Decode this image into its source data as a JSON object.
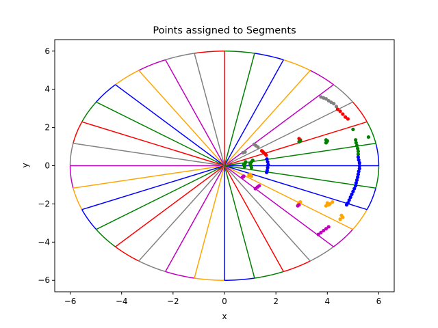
{
  "chart_data": {
    "type": "scatter",
    "title": "Points assigned to Segments",
    "xlabel": "x",
    "ylabel": "y",
    "xlim": [
      -6.6,
      6.6
    ],
    "ylim": [
      -6.6,
      6.6
    ],
    "xticks": [
      -6,
      -4,
      -2,
      0,
      2,
      4,
      6
    ],
    "yticks": [
      -6,
      -4,
      -2,
      0,
      2,
      4,
      6
    ],
    "xtick_labels": [
      "−6",
      "−4",
      "−2",
      "0",
      "2",
      "4",
      "6"
    ],
    "ytick_labels": [
      "−6",
      "−4",
      "−2",
      "0",
      "2",
      "4",
      "6"
    ],
    "grid": false,
    "ellipse": {
      "rx": 6,
      "ry": 6,
      "segments": 32
    },
    "segment_colors": [
      "blue",
      "green",
      "red",
      "gray",
      "magenta",
      "orange",
      "blue",
      "green",
      "red",
      "gray",
      "magenta",
      "orange",
      "blue",
      "green",
      "red",
      "gray",
      "magenta",
      "orange",
      "blue",
      "green",
      "red",
      "gray",
      "magenta",
      "orange",
      "blue",
      "green",
      "red",
      "gray",
      "magenta",
      "orange",
      "blue",
      "green"
    ],
    "colors": {
      "blue": "#0000ff",
      "green": "#008000",
      "red": "#ff0000",
      "gray": "#808080",
      "magenta": "#bf00bf",
      "orange": "#ffa500"
    },
    "clusters": [
      {
        "color": "gray",
        "points": [
          [
            3.75,
            3.6
          ],
          [
            3.85,
            3.55
          ],
          [
            3.95,
            3.5
          ],
          [
            4.05,
            3.4
          ],
          [
            4.15,
            3.32
          ],
          [
            4.25,
            3.25
          ],
          [
            4.35,
            3.1
          ],
          [
            1.15,
            1.12
          ],
          [
            1.22,
            1.05
          ],
          [
            1.3,
            0.98
          ],
          [
            0.8,
            0.72
          ],
          [
            0.72,
            0.68
          ]
        ]
      },
      {
        "color": "red",
        "points": [
          [
            4.4,
            2.95
          ],
          [
            4.5,
            2.85
          ],
          [
            4.6,
            2.7
          ],
          [
            4.7,
            2.55
          ],
          [
            4.8,
            2.45
          ],
          [
            2.9,
            1.42
          ],
          [
            2.95,
            1.35
          ],
          [
            2.92,
            1.3
          ],
          [
            1.45,
            0.78
          ],
          [
            1.5,
            0.72
          ],
          [
            1.55,
            0.65
          ],
          [
            1.6,
            0.6
          ],
          [
            1.62,
            0.55
          ]
        ]
      },
      {
        "color": "green",
        "points": [
          [
            5.0,
            1.9
          ],
          [
            5.6,
            1.5
          ],
          [
            5.1,
            1.35
          ],
          [
            5.12,
            1.2
          ],
          [
            5.15,
            1.05
          ],
          [
            5.18,
            0.9
          ],
          [
            5.2,
            0.75
          ],
          [
            5.2,
            0.6
          ],
          [
            3.95,
            1.35
          ],
          [
            4.0,
            1.3
          ],
          [
            3.98,
            1.25
          ],
          [
            3.95,
            1.2
          ],
          [
            2.9,
            1.25
          ],
          [
            2.95,
            1.3
          ],
          [
            0.75,
            0.05
          ],
          [
            0.78,
            -0.05
          ],
          [
            0.8,
            0.12
          ],
          [
            0.82,
            0.2
          ],
          [
            1.0,
            0.1
          ],
          [
            1.05,
            0.2
          ],
          [
            1.1,
            0.28
          ],
          [
            1.05,
            -0.1
          ],
          [
            1.02,
            0.02
          ]
        ]
      },
      {
        "color": "blue",
        "points": [
          [
            5.2,
            0.45
          ],
          [
            5.22,
            0.3
          ],
          [
            5.25,
            0.15
          ],
          [
            5.25,
            0.0
          ],
          [
            5.25,
            -0.15
          ],
          [
            5.22,
            -0.3
          ],
          [
            5.2,
            -0.45
          ],
          [
            5.18,
            -0.6
          ],
          [
            5.15,
            -0.75
          ],
          [
            5.12,
            -0.9
          ],
          [
            5.1,
            -1.05
          ],
          [
            5.05,
            -1.2
          ],
          [
            5.0,
            -1.35
          ],
          [
            4.95,
            -1.5
          ],
          [
            4.9,
            -1.65
          ],
          [
            4.85,
            -1.8
          ],
          [
            4.8,
            -1.95
          ],
          [
            4.75,
            -2.05
          ],
          [
            1.65,
            0.35
          ],
          [
            1.68,
            0.2
          ],
          [
            1.7,
            0.05
          ],
          [
            1.68,
            -0.1
          ],
          [
            1.66,
            -0.25
          ],
          [
            1.64,
            -0.35
          ]
        ]
      },
      {
        "color": "orange",
        "points": [
          [
            4.0,
            -1.95
          ],
          [
            4.05,
            -2.05
          ],
          [
            3.95,
            -2.1
          ],
          [
            4.1,
            -2.0
          ],
          [
            4.2,
            -1.9
          ],
          [
            2.9,
            -1.95
          ],
          [
            2.95,
            -1.9
          ],
          [
            2.88,
            -2.0
          ],
          [
            4.55,
            -2.6
          ],
          [
            4.6,
            -2.7
          ],
          [
            4.5,
            -2.8
          ],
          [
            1.0,
            -0.45
          ],
          [
            1.05,
            -0.55
          ],
          [
            0.95,
            -0.5
          ]
        ]
      },
      {
        "color": "magenta",
        "points": [
          [
            3.65,
            -3.6
          ],
          [
            3.75,
            -3.5
          ],
          [
            3.85,
            -3.4
          ],
          [
            3.95,
            -3.3
          ],
          [
            4.05,
            -3.2
          ],
          [
            2.85,
            -2.1
          ],
          [
            2.9,
            -2.05
          ],
          [
            1.2,
            -1.2
          ],
          [
            1.28,
            -1.12
          ],
          [
            1.35,
            -1.05
          ],
          [
            0.7,
            -0.6
          ],
          [
            0.75,
            -0.55
          ]
        ]
      }
    ]
  }
}
